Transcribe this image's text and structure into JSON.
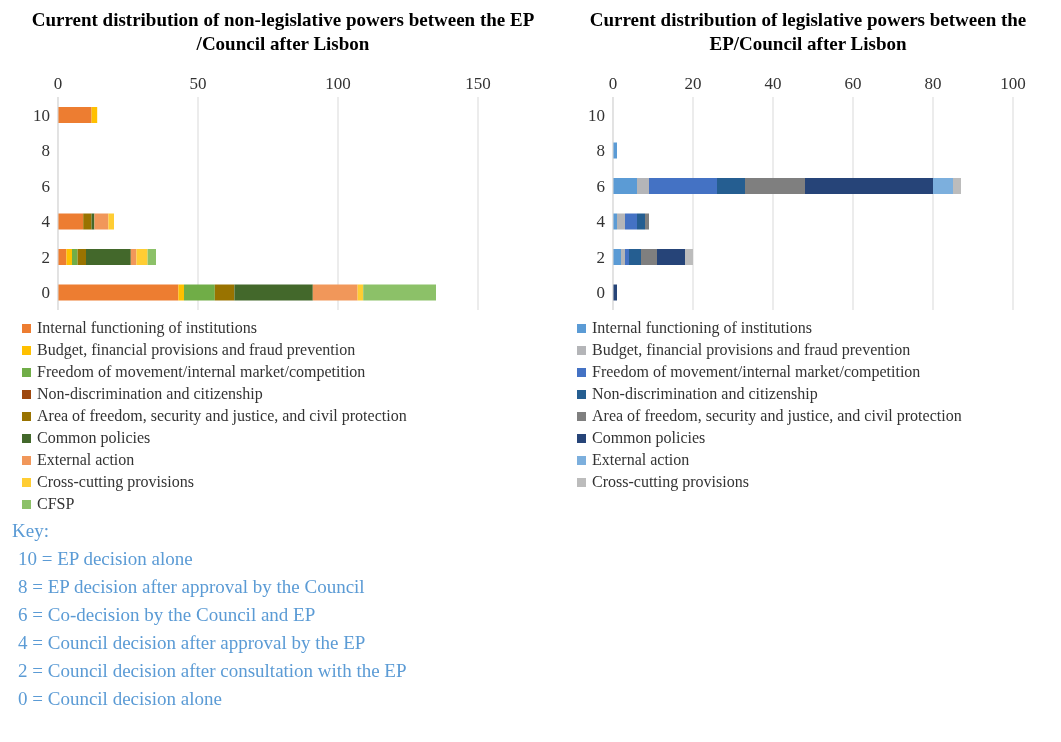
{
  "chart_data": [
    {
      "type": "bar",
      "orientation": "horizontal",
      "stacked": true,
      "title": "Current distribution of non-legislative powers between the EP /Council after Lisbon",
      "categories": [
        "10",
        "8",
        "6",
        "4",
        "2",
        "0"
      ],
      "series": [
        {
          "name": "Internal functioning of institutions",
          "color": "#ed7d31",
          "values": [
            12,
            0,
            0,
            9,
            3,
            43
          ]
        },
        {
          "name": "Budget, financial provisions and fraud prevention",
          "color": "#ffc000",
          "values": [
            2,
            0,
            0,
            0,
            2,
            2
          ]
        },
        {
          "name": "Freedom of movement/internal market/competition",
          "color": "#70ad47",
          "values": [
            0,
            0,
            0,
            0,
            2,
            11
          ]
        },
        {
          "name": "Non-discrimination and citizenship",
          "color": "#9e480e",
          "values": [
            0,
            0,
            0,
            0,
            0,
            0
          ]
        },
        {
          "name": "Area of freedom, security and justice, and civil protection",
          "color": "#997300",
          "values": [
            0,
            0,
            0,
            3,
            3,
            7
          ]
        },
        {
          "name": "Common policies",
          "color": "#43682b",
          "values": [
            0,
            0,
            0,
            1,
            16,
            28
          ]
        },
        {
          "name": "External action",
          "color": "#f1975a",
          "values": [
            0,
            0,
            0,
            5,
            2,
            16
          ]
        },
        {
          "name": "Cross-cutting provisions",
          "color": "#ffcd33",
          "values": [
            0,
            0,
            0,
            2,
            4,
            2
          ]
        },
        {
          "name": "CFSP",
          "color": "#8cc168",
          "values": [
            0,
            0,
            0,
            0,
            3,
            26
          ]
        }
      ],
      "xlim": [
        0,
        150
      ],
      "xticks": [
        0,
        50,
        100,
        150
      ],
      "grid": "x",
      "legend": "bottom",
      "annotations": [
        "Key:",
        "10 = EP decision alone",
        "8 = EP decision after approval by the Council",
        "6 = Co-decision by the Council and EP",
        "4 = Council decision after approval by the EP",
        "2 = Council decision after consultation with the EP",
        "0 = Council decision alone"
      ]
    },
    {
      "type": "bar",
      "orientation": "horizontal",
      "stacked": true,
      "title": "Current distribution of legislative powers between the EP/Council after Lisbon",
      "categories": [
        "10",
        "8",
        "6",
        "4",
        "2",
        "0"
      ],
      "series": [
        {
          "name": "Internal functioning of institutions",
          "color": "#5b9bd5",
          "values": [
            0,
            1,
            6,
            1,
            2,
            0
          ]
        },
        {
          "name": "Budget, financial provisions and fraud prevention",
          "color": "#b4b5b8",
          "values": [
            0,
            0,
            3,
            2,
            1,
            0
          ]
        },
        {
          "name": "Freedom of movement/internal market/competition",
          "color": "#4472c4",
          "values": [
            0,
            0,
            17,
            3,
            1,
            0
          ]
        },
        {
          "name": "Non-discrimination and citizenship",
          "color": "#255e91",
          "values": [
            0,
            0,
            7,
            2,
            3,
            0
          ]
        },
        {
          "name": "Area of freedom, security and justice, and civil protection",
          "color": "#7f7f7f",
          "values": [
            0,
            0,
            15,
            1,
            4,
            0
          ]
        },
        {
          "name": "Common policies",
          "color": "#264478",
          "values": [
            0,
            0,
            32,
            0,
            7,
            1
          ]
        },
        {
          "name": "External action",
          "color": "#7cafdd",
          "values": [
            0,
            0,
            5,
            0,
            0,
            0
          ]
        },
        {
          "name": "Cross-cutting provisions",
          "color": "#bcbcbc",
          "values": [
            0,
            0,
            2,
            0,
            2,
            0
          ]
        }
      ],
      "xlim": [
        0,
        100
      ],
      "xticks": [
        0,
        20,
        40,
        60,
        80,
        100
      ],
      "grid": "x",
      "legend": "bottom"
    }
  ]
}
